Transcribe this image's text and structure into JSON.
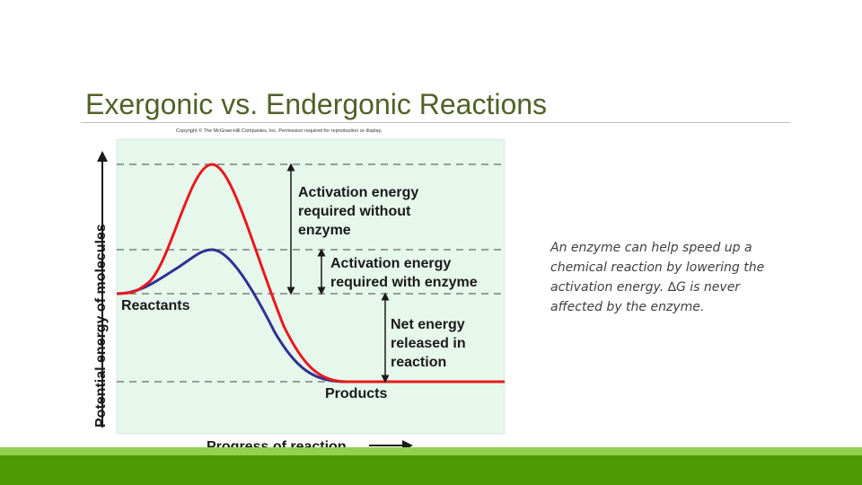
{
  "slide": {
    "title": "Exergonic vs. Endergonic Reactions",
    "caption": "An enzyme can help speed up a chemical reaction by lowering the activation energy. ∆G is never affected by the enzyme."
  },
  "figure": {
    "copyright": "Copyright © The McGraw-Hill Companies, Inc. Permission required for reproduction or display.",
    "y_axis_label": "Potential energy of molecules",
    "x_axis_label": "Progress of reaction",
    "labels": {
      "activation_without_1": "Activation energy",
      "activation_without_2": "required without",
      "activation_without_3": "enzyme",
      "activation_with_1": "Activation energy",
      "activation_with_2": "required with enzyme",
      "net_1": "Net energy",
      "net_2": "released in",
      "net_3": "reaction",
      "reactants": "Reactants",
      "products": "Products"
    },
    "colors": {
      "panel": "#e6f7ec",
      "without_enzyme_curve": "#e8191c",
      "with_enzyme_curve": "#2e3192",
      "dashes": "#444444",
      "arrows": "#1a1a1a"
    }
  },
  "theme": {
    "title_color": "#4f6228",
    "footer_light": "#92d050",
    "footer_dark": "#4e9a06"
  }
}
